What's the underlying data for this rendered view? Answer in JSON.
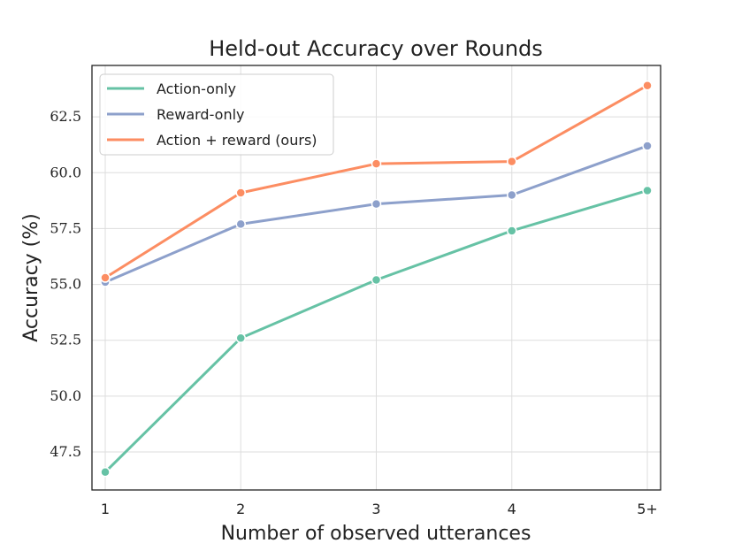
{
  "chart_data": {
    "type": "line",
    "title": "Held-out Accuracy over Rounds",
    "xlabel": "Number of observed utterances",
    "ylabel": "Accuracy (%)",
    "categories": [
      "1",
      "2",
      "3",
      "4",
      "5+"
    ],
    "ylim": [
      45.8,
      64.8
    ],
    "yticks": [
      "47.5",
      "50.0",
      "52.5",
      "55.0",
      "57.5",
      "60.0",
      "62.5"
    ],
    "grid": true,
    "legend_position": "top-left",
    "series": [
      {
        "name": "Action-only",
        "color": "#66c2a5",
        "values": [
          46.6,
          52.6,
          55.2,
          57.4,
          59.2
        ]
      },
      {
        "name": "Reward-only",
        "color": "#8da0cb",
        "values": [
          55.1,
          57.7,
          58.6,
          59.0,
          61.2
        ]
      },
      {
        "name": "Action + reward (ours)",
        "color": "#fc8d62",
        "values": [
          55.3,
          59.1,
          60.4,
          60.5,
          63.9
        ]
      }
    ]
  }
}
